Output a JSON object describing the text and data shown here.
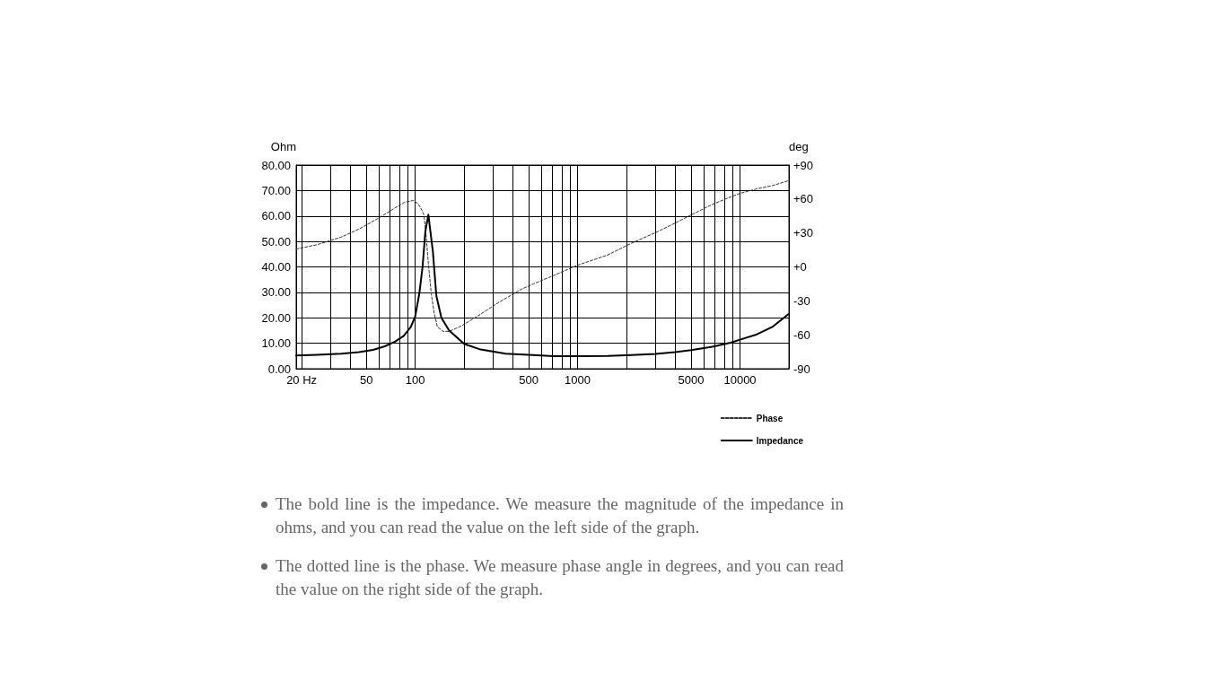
{
  "chart_data": {
    "type": "line",
    "ylabel": "Ohm",
    "y2label": "deg",
    "annotations": [
      "The bold line is the impedance. We measure the magnitude of the impedance in ohms, and you can read the value on the left side of the graph.",
      "The dotted line is the phase. We measure phase angle in degrees, and you can read the value on the right side of the graph."
    ],
    "xlim": [
      18.5,
      20000
    ],
    "xticks": [
      {
        "value": 20,
        "label": "20 Hz"
      },
      {
        "value": 30,
        "label": null
      },
      {
        "value": 40,
        "label": null
      },
      50,
      {
        "value": 60,
        "label": null
      },
      {
        "value": 70,
        "label": null
      },
      {
        "value": 80,
        "label": null
      },
      {
        "value": 90,
        "label": null
      },
      100,
      {
        "value": 200,
        "label": null
      },
      {
        "value": 300,
        "label": null
      },
      {
        "value": 400,
        "label": null
      },
      500,
      {
        "value": 600,
        "label": null
      },
      {
        "value": 700,
        "label": null
      },
      {
        "value": 800,
        "label": null
      },
      {
        "value": 900,
        "label": null
      },
      1000,
      {
        "value": 2000,
        "label": null
      },
      {
        "value": 3000,
        "label": null
      },
      {
        "value": 4000,
        "label": null
      },
      5000,
      {
        "value": 6000,
        "label": null
      },
      {
        "value": 7000,
        "label": null
      },
      {
        "value": 8000,
        "label": null
      },
      {
        "value": 9000,
        "label": null
      },
      10000
    ],
    "ylim": [
      0,
      80
    ],
    "yticks": [
      {
        "value": 0,
        "label": "0.00"
      },
      {
        "value": 10,
        "label": "10.00"
      },
      {
        "value": 20,
        "label": "20.00"
      },
      {
        "value": 30,
        "label": "30.00"
      },
      {
        "value": 40,
        "label": "40.00"
      },
      {
        "value": 50,
        "label": "50.00"
      },
      {
        "value": 60,
        "label": "60.00"
      },
      {
        "value": 70,
        "label": "70.00"
      },
      {
        "value": 80,
        "label": "80.00"
      }
    ],
    "y2lim": [
      -90,
      90
    ],
    "y2ticks": [
      -90,
      -60,
      -30,
      {
        "value": 0,
        "label": "+0"
      },
      {
        "value": 30,
        "label": "+30"
      },
      {
        "value": 60,
        "label": "+60"
      },
      {
        "value": 90,
        "label": "+90"
      }
    ],
    "log": "x",
    "grid": true,
    "legend": "bottom right",
    "marker": "none",
    "series": [
      {
        "name": "Phase",
        "color": "#333333",
        "axis": "y2",
        "line_style": "dashed",
        "x": [
          18.5,
          25,
          35,
          45,
          61,
          76,
          86,
          97,
          104,
          110,
          113,
          116,
          120.5,
          125.7,
          131,
          137,
          149,
          162,
          192,
          248,
          320,
          412,
          448,
          531,
          684,
          1000,
          1530,
          2150,
          3020,
          3980,
          5000,
          6750,
          8750,
          10000,
          12700,
          15800,
          20000
        ],
        "values": [
          15.8,
          19.7,
          26.3,
          33.4,
          44,
          52.6,
          57.1,
          58.7,
          56,
          50,
          46,
          32,
          3,
          -24,
          -41,
          -53,
          -57,
          -57,
          -52.3,
          -42.6,
          -32.2,
          -23,
          -19.9,
          -15.2,
          -8.6,
          1.5,
          10.5,
          21,
          30.3,
          38.7,
          46,
          55.2,
          61.8,
          65,
          69,
          71.8,
          76.3
        ]
      },
      {
        "name": "Impedance",
        "color": "#000000",
        "line_style": "solid",
        "x": [
          18.5,
          25,
          35,
          45,
          55,
          65,
          75,
          85,
          94,
          100,
          106,
          111,
          115.5,
          120.5,
          128.5,
          135,
          145,
          162,
          200,
          248,
          361,
          530,
          712,
          1000,
          1530,
          2150,
          3020,
          3980,
          5000,
          6750,
          8750,
          10000,
          12700,
          15800,
          20000
        ],
        "values": [
          5.2,
          5.5,
          5.9,
          6.5,
          7.4,
          8.8,
          10.6,
          12.9,
          16.4,
          20.5,
          29.5,
          40,
          54,
          60.5,
          46,
          28.6,
          20,
          15,
          9.8,
          7.7,
          5.9,
          5.4,
          4.9,
          4.9,
          5.0,
          5.4,
          5.8,
          6.5,
          7.3,
          8.6,
          10.2,
          11.4,
          13.5,
          16.4,
          21.6
        ]
      }
    ]
  }
}
